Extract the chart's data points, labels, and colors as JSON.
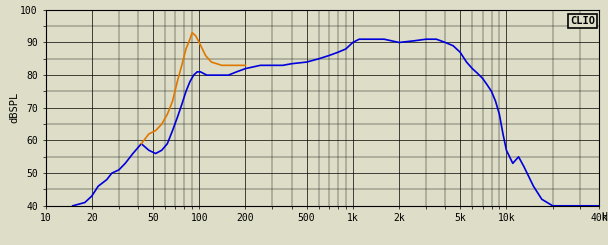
{
  "title": "",
  "ylabel": "dBSPL",
  "xlabel": "Hz",
  "clio_label": "CLIO",
  "xlim": [
    10,
    40000
  ],
  "ylim": [
    40,
    100
  ],
  "yticks": [
    40,
    50,
    60,
    70,
    80,
    90,
    100
  ],
  "xticks_major": [
    10,
    20,
    50,
    100,
    200,
    500,
    1000,
    2000,
    5000,
    10000,
    40000
  ],
  "xticklabels": [
    "10",
    "20",
    "50",
    "100",
    "200",
    "500",
    "1k",
    "2k",
    "5k",
    "10k",
    "40k"
  ],
  "bg_color": "#ddddc8",
  "grid_color": "#000000",
  "blue_color": "#0000dd",
  "orange_color": "#e07800",
  "blue_curve": {
    "freqs": [
      15,
      18,
      20,
      22,
      25,
      27,
      30,
      33,
      37,
      42,
      47,
      52,
      57,
      62,
      67,
      72,
      77,
      82,
      87,
      92,
      97,
      102,
      112,
      122,
      135,
      155,
      175,
      200,
      250,
      300,
      350,
      400,
      500,
      600,
      700,
      800,
      900,
      1000,
      1100,
      1200,
      1400,
      1600,
      2000,
      2500,
      3000,
      3500,
      4000,
      4500,
      5000,
      5500,
      6000,
      6500,
      7000,
      7500,
      8000,
      8500,
      9000,
      9500,
      10000,
      11000,
      12000,
      13000,
      15000,
      17000,
      20000,
      25000,
      30000,
      40000
    ],
    "spl": [
      40,
      41,
      43,
      46,
      48,
      50,
      51,
      53,
      56,
      59,
      57,
      56,
      57,
      59,
      63,
      67,
      71,
      75,
      78,
      80,
      81,
      81,
      80,
      80,
      80,
      80,
      81,
      82,
      83,
      83,
      83,
      83.5,
      84,
      85,
      86,
      87,
      88,
      90,
      91,
      91,
      91,
      91,
      90,
      90.5,
      91,
      91,
      90,
      89,
      87,
      84,
      82,
      80.5,
      79,
      77,
      75,
      72,
      68,
      62,
      57,
      53,
      55,
      52,
      46,
      42,
      40,
      40,
      40,
      40
    ]
  },
  "orange_curve": {
    "freqs": [
      42,
      47,
      52,
      57,
      62,
      67,
      72,
      77,
      82,
      87,
      90,
      95,
      100,
      110,
      120,
      130,
      140,
      150,
      160,
      170,
      180,
      200
    ],
    "spl": [
      59,
      62,
      63,
      65,
      68,
      72,
      78,
      83,
      88,
      91,
      93,
      92,
      90,
      86,
      84,
      83.5,
      83,
      83,
      83,
      83,
      83,
      83
    ]
  },
  "fig_width": 6.08,
  "fig_height": 2.45,
  "dpi": 100
}
